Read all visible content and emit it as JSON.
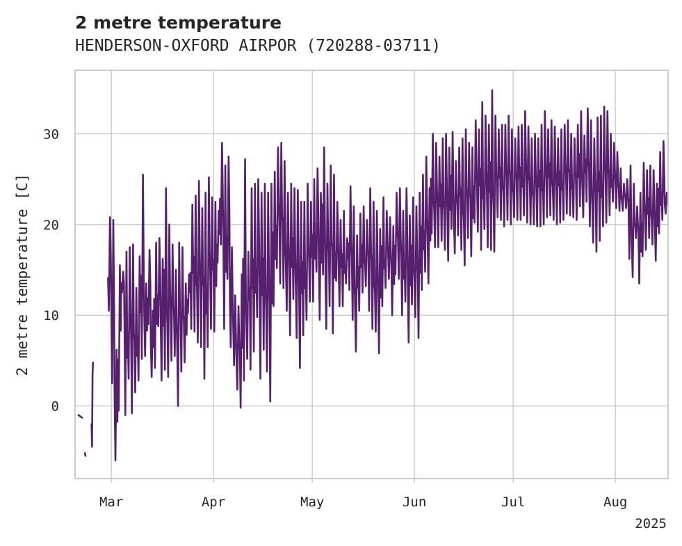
{
  "chart_data": {
    "type": "line",
    "title": "2 metre temperature",
    "subtitle": "HENDERSON-OXFORD AIRPOR (720288-03711)",
    "ylabel": "2 metre temperature [C]",
    "xlabel": "",
    "x_year_label": "2025",
    "x_range": [
      "2025-02-18",
      "2025-08-17"
    ],
    "ylim": [
      -8,
      37
    ],
    "y_ticks": [
      0,
      10,
      20,
      30
    ],
    "x_ticks": [
      {
        "date": "2025-03-01",
        "label": "Mar"
      },
      {
        "date": "2025-04-01",
        "label": "Apr"
      },
      {
        "date": "2025-05-01",
        "label": "May"
      },
      {
        "date": "2025-06-01",
        "label": "Jun"
      },
      {
        "date": "2025-07-01",
        "label": "Jul"
      },
      {
        "date": "2025-08-01",
        "label": "Aug"
      }
    ],
    "grid": true,
    "line_color": "#56206e",
    "series": [
      {
        "segments": [
          {
            "x": [
              "2025-02-19",
              "2025-02-20"
            ],
            "y": [
              -1.0,
              -1.3
            ]
          },
          {
            "x": [
              "2025-02-21",
              "2025-02-21"
            ],
            "y": [
              -5.2,
              -5.5
            ]
          },
          {
            "x": [
              "2025-02-23",
              "2025-02-23",
              "2025-02-23",
              "2025-02-23"
            ],
            "y": [
              -2.0,
              -4.5,
              3.5,
              4.8
            ]
          },
          {
            "x": [
              "2025-02-28",
              "2025-03-01",
              "2025-03-02",
              "2025-03-03",
              "2025-03-04",
              "2025-03-05",
              "2025-03-06",
              "2025-03-07",
              "2025-03-08",
              "2025-03-09",
              "2025-03-10",
              "2025-03-11",
              "2025-03-12",
              "2025-03-13",
              "2025-03-14",
              "2025-03-15",
              "2025-03-16",
              "2025-03-17",
              "2025-03-18",
              "2025-03-19",
              "2025-03-20",
              "2025-03-21",
              "2025-03-22",
              "2025-03-23",
              "2025-03-24",
              "2025-03-25",
              "2025-03-26",
              "2025-03-27",
              "2025-03-28",
              "2025-03-29",
              "2025-03-30",
              "2025-03-31",
              "2025-04-01",
              "2025-04-02",
              "2025-04-03",
              "2025-04-04",
              "2025-04-05",
              "2025-04-06",
              "2025-04-07",
              "2025-04-08",
              "2025-04-09",
              "2025-04-10",
              "2025-04-11",
              "2025-04-12",
              "2025-04-13",
              "2025-04-14",
              "2025-04-15",
              "2025-04-16",
              "2025-04-17",
              "2025-04-18",
              "2025-04-19",
              "2025-04-20",
              "2025-04-21",
              "2025-04-22",
              "2025-04-23",
              "2025-04-24",
              "2025-04-25",
              "2025-04-26",
              "2025-04-27",
              "2025-04-28",
              "2025-04-29",
              "2025-04-30",
              "2025-05-01",
              "2025-05-02",
              "2025-05-03",
              "2025-05-04",
              "2025-05-05",
              "2025-05-06",
              "2025-05-07",
              "2025-05-08",
              "2025-05-09",
              "2025-05-10",
              "2025-05-11",
              "2025-05-12",
              "2025-05-13",
              "2025-05-14",
              "2025-05-15",
              "2025-05-16",
              "2025-05-17",
              "2025-05-18",
              "2025-05-19",
              "2025-05-20",
              "2025-05-21",
              "2025-05-22",
              "2025-05-23",
              "2025-05-24",
              "2025-05-25",
              "2025-05-26",
              "2025-05-27",
              "2025-05-28",
              "2025-05-29",
              "2025-05-30",
              "2025-05-31",
              "2025-06-01",
              "2025-06-02",
              "2025-06-03",
              "2025-06-04",
              "2025-06-05",
              "2025-06-06",
              "2025-06-07",
              "2025-06-08",
              "2025-06-09",
              "2025-06-10",
              "2025-06-11",
              "2025-06-12",
              "2025-06-13",
              "2025-06-14",
              "2025-06-15",
              "2025-06-16",
              "2025-06-17",
              "2025-06-18",
              "2025-06-19",
              "2025-06-20",
              "2025-06-21",
              "2025-06-22",
              "2025-06-23",
              "2025-06-24",
              "2025-06-25",
              "2025-06-26",
              "2025-06-27",
              "2025-06-28",
              "2025-06-29",
              "2025-06-30",
              "2025-07-01",
              "2025-07-02",
              "2025-07-03",
              "2025-07-04",
              "2025-07-05",
              "2025-07-06",
              "2025-07-07",
              "2025-07-08",
              "2025-07-09",
              "2025-07-10",
              "2025-07-11",
              "2025-07-12",
              "2025-07-13",
              "2025-07-14",
              "2025-07-15",
              "2025-07-16",
              "2025-07-17",
              "2025-07-18",
              "2025-07-19",
              "2025-07-20",
              "2025-07-21",
              "2025-07-22",
              "2025-07-23",
              "2025-07-24",
              "2025-07-25",
              "2025-07-26",
              "2025-07-27",
              "2025-07-28",
              "2025-07-29",
              "2025-07-30",
              "2025-07-31",
              "2025-08-01",
              "2025-08-02",
              "2025-08-03",
              "2025-08-04",
              "2025-08-05",
              "2025-08-06",
              "2025-08-07",
              "2025-08-08",
              "2025-08-09",
              "2025-08-10",
              "2025-08-11",
              "2025-08-12",
              "2025-08-13",
              "2025-08-14",
              "2025-08-15",
              "2025-08-16"
            ],
            "y_min": [
              10.5,
              2.5,
              -6.0,
              -0.5,
              12.5,
              -1.0,
              3.0,
              -0.8,
              1.5,
              2.8,
              5.2,
              5.5,
              9.0,
              3.2,
              4.2,
              8.8,
              2.8,
              4.0,
              3.2,
              5.0,
              5.5,
              0.0,
              3.8,
              4.8,
              10.2,
              8.5,
              8.2,
              7.0,
              6.5,
              3.0,
              6.5,
              8.5,
              8.2,
              15.8,
              17.8,
              8.5,
              14.0,
              6.5,
              4.5,
              1.8,
              -0.2,
              2.8,
              5.2,
              4.0,
              6.0,
              9.8,
              3.0,
              6.2,
              3.8,
              0.5,
              11.0,
              15.2,
              13.5,
              13.0,
              10.5,
              7.8,
              11.8,
              7.5,
              4.2,
              7.8,
              9.5,
              11.5,
              11.5,
              14.8,
              9.5,
              14.5,
              8.5,
              11.0,
              8.0,
              13.8,
              11.0,
              11.0,
              13.5,
              12.8,
              9.5,
              6.0,
              10.5,
              12.5,
              13.2,
              10.5,
              8.5,
              8.2,
              5.8,
              11.0,
              13.0,
              14.0,
              10.0,
              14.5,
              14.0,
              10.0,
              11.5,
              7.0,
              11.2,
              9.8,
              7.5,
              12.8,
              14.8,
              13.5,
              19.0,
              17.5,
              17.5,
              18.2,
              17.2,
              16.0,
              19.5,
              16.8,
              18.8,
              17.2,
              15.5,
              18.5,
              16.5,
              20.2,
              19.2,
              17.2,
              19.5,
              17.5,
              17.2,
              17.0,
              20.8,
              20.5,
              19.8,
              20.5,
              20.0,
              20.8,
              20.5,
              20.5,
              21.0,
              20.2,
              20.0,
              20.0,
              19.8,
              19.8,
              20.0,
              20.8,
              21.0,
              20.5,
              20.0,
              20.2,
              20.5,
              21.2,
              21.0,
              20.8,
              20.5,
              22.0,
              20.8,
              22.5,
              19.8,
              18.0,
              17.0,
              18.2,
              19.8,
              20.2,
              21.0,
              22.5,
              21.8,
              21.5,
              21.5,
              21.8,
              16.2,
              14.2,
              18.5,
              13.5,
              16.5,
              17.2,
              18.5,
              17.8,
              16.0,
              19.0,
              20.5,
              21.2,
              21.5,
              22.0,
              21.2,
              21.0,
              21.5
            ],
            "y_max": [
              20.8,
              20.5,
              6.2,
              15.5,
              14.8,
              17.0,
              17.5,
              17.8,
              13.0,
              16.5,
              25.5,
              13.5,
              17.2,
              10.5,
              18.0,
              18.5,
              16.2,
              24.0,
              20.0,
              17.8,
              15.0,
              18.0,
              17.5,
              13.5,
              14.5,
              22.2,
              23.2,
              24.8,
              21.8,
              23.5,
              25.2,
              23.0,
              22.5,
              21.5,
              29.0,
              26.5,
              27.5,
              17.5,
              12.2,
              11.0,
              14.5,
              27.2,
              17.0,
              24.0,
              24.5,
              25.0,
              23.5,
              24.5,
              23.5,
              24.5,
              25.8,
              28.5,
              29.0,
              27.0,
              23.5,
              24.5,
              24.0,
              23.8,
              22.5,
              22.5,
              24.5,
              22.5,
              25.0,
              26.2,
              23.5,
              28.5,
              24.5,
              26.5,
              25.5,
              22.5,
              20.5,
              21.5,
              18.5,
              24.2,
              22.0,
              18.8,
              21.2,
              22.0,
              20.5,
              24.0,
              22.5,
              21.5,
              19.5,
              23.0,
              21.5,
              20.8,
              19.8,
              23.5,
              24.0,
              21.5,
              24.0,
              21.0,
              23.0,
              22.0,
              23.5,
              25.5,
              27.5,
              24.0,
              30.0,
              29.0,
              27.5,
              29.5,
              30.0,
              28.5,
              30.2,
              27.0,
              28.5,
              29.5,
              30.5,
              29.0,
              28.5,
              31.5,
              30.5,
              33.5,
              32.0,
              31.0,
              34.8,
              32.0,
              30.5,
              31.0,
              31.0,
              32.0,
              30.5,
              29.5,
              30.8,
              31.0,
              32.5,
              30.8,
              29.5,
              30.0,
              29.5,
              31.0,
              32.5,
              30.5,
              31.5,
              30.8,
              29.5,
              30.5,
              31.0,
              31.5,
              30.0,
              29.5,
              31.0,
              32.5,
              29.8,
              32.8,
              31.5,
              29.5,
              31.8,
              32.0,
              33.0,
              32.5,
              30.0,
              29.0,
              28.0,
              26.2,
              24.5,
              25.0,
              26.5,
              24.5,
              22.0,
              23.5,
              26.8,
              26.0,
              26.5,
              26.0,
              24.5,
              28.0,
              29.2,
              23.5
            ]
          }
        ]
      }
    ]
  }
}
